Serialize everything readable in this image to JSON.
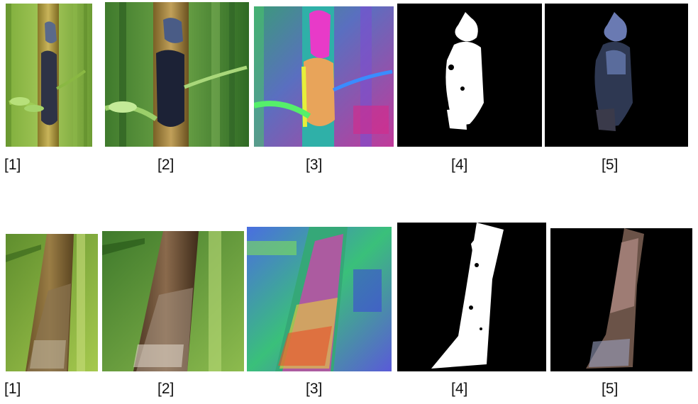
{
  "row1": {
    "labels": [
      "[1]",
      "[2]",
      "[3]",
      "[4]",
      "[5]"
    ]
  },
  "row2": {
    "labels": [
      "[1]",
      "[2]",
      "[3]",
      "[4]",
      "[5]"
    ]
  }
}
